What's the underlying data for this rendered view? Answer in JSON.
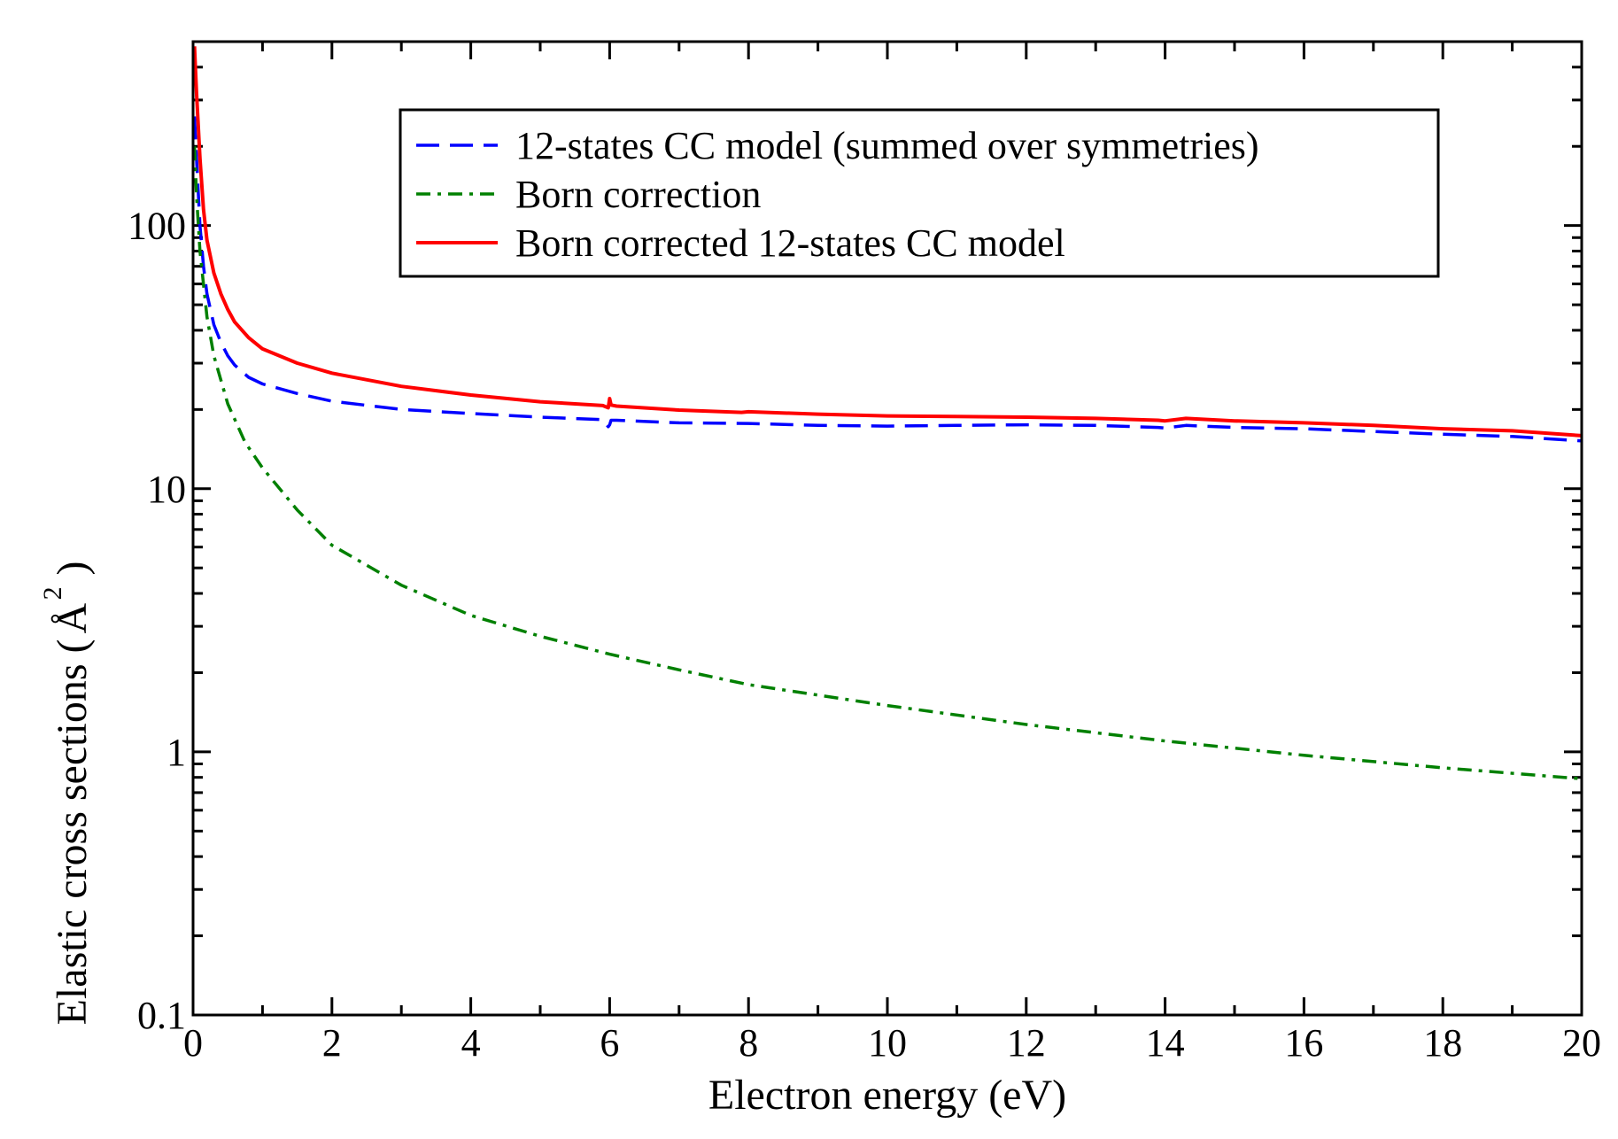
{
  "chart_data": {
    "type": "line",
    "title": "",
    "xlabel": "Electron energy (eV)",
    "ylabel_main": "Elastic cross sections (",
    "ylabel_unit": "Å",
    "ylabel_sup": "2",
    "ylabel_close": ")",
    "xscale": "linear",
    "yscale": "log",
    "xlim": [
      0,
      20
    ],
    "ylim": [
      0.1,
      500
    ],
    "grid": false,
    "legend_position": "top-right",
    "xticks": [
      0,
      2,
      4,
      6,
      8,
      10,
      12,
      14,
      16,
      18,
      20
    ],
    "xtick_labels": [
      "0",
      "2",
      "4",
      "6",
      "8",
      "10",
      "12",
      "14",
      "16",
      "18",
      "20"
    ],
    "yticks": [
      0.1,
      1,
      10,
      100
    ],
    "ytick_labels": [
      "0.1",
      "1",
      "10",
      "100"
    ],
    "series": [
      {
        "name": "12-states CC model (summed over symmetries)",
        "color": "#0000ff",
        "style": "dashed",
        "x": [
          0.02,
          0.05,
          0.1,
          0.15,
          0.2,
          0.3,
          0.4,
          0.5,
          0.6,
          0.8,
          1.0,
          1.5,
          2.0,
          3.0,
          4.0,
          5.0,
          5.9,
          5.98,
          6.0,
          6.02,
          6.1,
          7.0,
          8.0,
          9.0,
          10.0,
          11.0,
          12.0,
          13.0,
          13.9,
          14.0,
          14.3,
          15.0,
          16.0,
          17.0,
          18.0,
          19.0,
          20.0
        ],
        "y": [
          260,
          180,
          100,
          70,
          55,
          42,
          36,
          32,
          29.5,
          26.5,
          25,
          23,
          21.5,
          20,
          19.3,
          18.7,
          18.3,
          17.2,
          17.5,
          18.2,
          18.2,
          17.8,
          17.7,
          17.4,
          17.3,
          17.4,
          17.5,
          17.4,
          17.1,
          17.0,
          17.4,
          17.1,
          16.9,
          16.5,
          16.1,
          15.8,
          15.2
        ]
      },
      {
        "name": "Born correction",
        "color": "#008000",
        "style": "dashdot",
        "x": [
          0.02,
          0.05,
          0.1,
          0.2,
          0.3,
          0.5,
          0.75,
          1.0,
          1.5,
          2.0,
          3.0,
          4.0,
          5.0,
          6.0,
          7.0,
          8.0,
          10.0,
          12.0,
          14.0,
          16.0,
          18.0,
          20.0
        ],
        "y": [
          200,
          130,
          80,
          45,
          32,
          21,
          15,
          12,
          8.3,
          6.1,
          4.3,
          3.3,
          2.75,
          2.35,
          2.05,
          1.8,
          1.5,
          1.27,
          1.1,
          0.97,
          0.87,
          0.79
        ]
      },
      {
        "name": "Born corrected 12-states CC model",
        "color": "#ff0000",
        "style": "solid",
        "x": [
          0.02,
          0.05,
          0.1,
          0.15,
          0.2,
          0.3,
          0.4,
          0.5,
          0.6,
          0.8,
          1.0,
          1.5,
          2.0,
          3.0,
          4.0,
          5.0,
          5.9,
          5.98,
          6.0,
          6.02,
          6.1,
          7.0,
          7.9,
          8.0,
          9.0,
          10.0,
          11.0,
          12.0,
          13.0,
          13.9,
          14.0,
          14.3,
          15.0,
          16.0,
          17.0,
          18.0,
          19.0,
          20.0
        ],
        "y": [
          480,
          320,
          180,
          115,
          88,
          66,
          55,
          48,
          43,
          37.5,
          34,
          30,
          27.5,
          24.5,
          22.7,
          21.4,
          20.7,
          20.3,
          22.0,
          20.8,
          20.6,
          19.9,
          19.5,
          19.6,
          19.2,
          18.9,
          18.8,
          18.7,
          18.5,
          18.2,
          18.1,
          18.5,
          18.1,
          17.8,
          17.4,
          16.9,
          16.6,
          15.9
        ]
      }
    ]
  }
}
